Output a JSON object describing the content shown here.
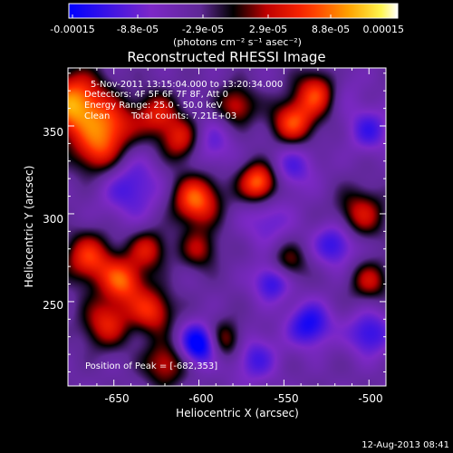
{
  "chart_data": {
    "type": "heatmap",
    "title": "Reconstructed RHESSI Image",
    "xlabel": "Heliocentric X (arcsec)",
    "ylabel": "Heliocentric Y (arcsec)",
    "xlim": [
      -677,
      -490
    ],
    "ylim": [
      202,
      383
    ],
    "x_ticks": [
      -650,
      -600,
      -550,
      -500
    ],
    "y_ticks": [
      250,
      300,
      350
    ],
    "x_tick_labels": [
      "-650",
      "-600",
      "-550",
      "-500"
    ],
    "y_tick_labels": [
      "250",
      "300",
      "350"
    ],
    "colorbar": {
      "min": -0.00015,
      "max": 0.00015,
      "tick_labels": [
        "-0.00015",
        "-8.8e-05",
        "-2.9e-05",
        "2.9e-05",
        "8.8e-05",
        "0.00015"
      ],
      "unit_label": "(photons cm⁻² s⁻¹ asec⁻²)"
    },
    "annotations": {
      "time": "5-Nov-2011 13:15:04.000 to 13:20:34.000",
      "detectors": "Detectors: 4F 5F 6F 7F 8F, Att 0",
      "energy": "Energy Range: 25.0 - 50.0 keV",
      "method": "Clean",
      "counts": "Total counts: 7.21E+03",
      "peak": "Position of Peak = [-682,353]"
    },
    "blobs": [
      {
        "x": -673,
        "y": 362,
        "v": 1.0,
        "r": 13
      },
      {
        "x": -650,
        "y": 350,
        "v": 0.55,
        "r": 10
      },
      {
        "x": -660,
        "y": 335,
        "v": 0.6,
        "r": 10
      },
      {
        "x": -625,
        "y": 357,
        "v": 0.55,
        "r": 9
      },
      {
        "x": -530,
        "y": 369,
        "v": 0.85,
        "r": 9
      },
      {
        "x": -578,
        "y": 362,
        "v": 0.55,
        "r": 8
      },
      {
        "x": -610,
        "y": 342,
        "v": 0.65,
        "r": 9
      },
      {
        "x": -545,
        "y": 352,
        "v": 0.75,
        "r": 9
      },
      {
        "x": -602,
        "y": 308,
        "v": 0.85,
        "r": 10
      },
      {
        "x": -565,
        "y": 318,
        "v": 0.9,
        "r": 8
      },
      {
        "x": -665,
        "y": 275,
        "v": 0.7,
        "r": 10
      },
      {
        "x": -645,
        "y": 262,
        "v": 0.75,
        "r": 9
      },
      {
        "x": -630,
        "y": 280,
        "v": 0.55,
        "r": 8
      },
      {
        "x": -655,
        "y": 238,
        "v": 0.6,
        "r": 10
      },
      {
        "x": -628,
        "y": 245,
        "v": 0.65,
        "r": 9
      },
      {
        "x": -620,
        "y": 215,
        "v": 0.55,
        "r": 9
      },
      {
        "x": -505,
        "y": 300,
        "v": 0.55,
        "r": 10
      },
      {
        "x": -500,
        "y": 262,
        "v": 0.5,
        "r": 8
      },
      {
        "x": -585,
        "y": 228,
        "v": 0.55,
        "r": 8
      },
      {
        "x": -548,
        "y": 272,
        "v": 0.45,
        "r": 8
      },
      {
        "x": -600,
        "y": 280,
        "v": 0.45,
        "r": 8
      },
      {
        "x": -640,
        "y": 315,
        "v": -0.45,
        "r": 13
      },
      {
        "x": -595,
        "y": 340,
        "v": -0.4,
        "r": 10
      },
      {
        "x": -545,
        "y": 327,
        "v": -0.4,
        "r": 10
      },
      {
        "x": -560,
        "y": 296,
        "v": -0.35,
        "r": 10
      },
      {
        "x": -600,
        "y": 226,
        "v": -0.9,
        "r": 8
      },
      {
        "x": -557,
        "y": 262,
        "v": -0.6,
        "r": 8
      },
      {
        "x": -535,
        "y": 237,
        "v": -0.65,
        "r": 9
      },
      {
        "x": -520,
        "y": 283,
        "v": -0.55,
        "r": 9
      },
      {
        "x": -500,
        "y": 232,
        "v": -0.55,
        "r": 9
      },
      {
        "x": -568,
        "y": 218,
        "v": -0.45,
        "r": 10
      },
      {
        "x": -520,
        "y": 370,
        "v": -0.3,
        "r": 10
      },
      {
        "x": -500,
        "y": 348,
        "v": -0.45,
        "r": 9
      }
    ]
  },
  "footer_date": "12-Aug-2013 08:41"
}
